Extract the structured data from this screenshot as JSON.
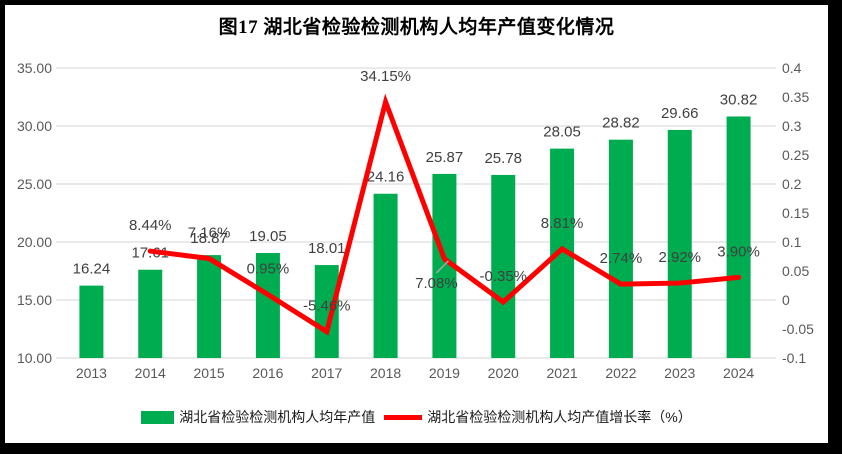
{
  "frame": {
    "border_color": "#000000",
    "background": "#FFFFFF"
  },
  "chart_data": {
    "type": "combo-bar-line",
    "title": "图17 湖北省检验检测机构人均年产值变化情况",
    "categories": [
      "2013",
      "2014",
      "2015",
      "2016",
      "2017",
      "2018",
      "2019",
      "2020",
      "2021",
      "2022",
      "2023",
      "2024"
    ],
    "series": [
      {
        "name": "湖北省检验检测机构人均年产值",
        "type": "bar",
        "axis": "left",
        "color": "#00AC50",
        "values": [
          16.24,
          17.61,
          18.87,
          19.05,
          18.01,
          24.16,
          25.87,
          25.78,
          28.05,
          28.82,
          29.66,
          30.82
        ],
        "labels": [
          "16.24",
          "17.61",
          "18.87",
          "19.05",
          "18.01",
          "24.16",
          "25.87",
          "25.78",
          "28.05",
          "28.82",
          "29.66",
          "30.82"
        ]
      },
      {
        "name": "湖北省检验检测机构人均产值增长率（%）",
        "type": "line",
        "axis": "right",
        "color": "#FF0000",
        "values": [
          null,
          0.0844,
          0.0716,
          0.0095,
          -0.0546,
          0.3415,
          0.0708,
          -0.0035,
          0.0881,
          0.0274,
          0.0292,
          0.039
        ],
        "labels": [
          null,
          "8.44%",
          "7.16%",
          "0.95%",
          "-5.46%",
          "34.15%",
          "7.08%",
          "-0.35%",
          "8.81%",
          "2.74%",
          "2.92%",
          "3.90%"
        ]
      }
    ],
    "axes": {
      "left": {
        "min": 10,
        "max": 35,
        "tick_labels": [
          "35.00",
          "30.00",
          "25.00",
          "20.00",
          "15.00",
          "10.00"
        ]
      },
      "right": {
        "min": -0.1,
        "max": 0.4,
        "tick_labels": [
          "0.4",
          "0.35",
          "0.3",
          "0.25",
          "0.2",
          "0.15",
          "0.1",
          "0.05",
          "0",
          "-0.05",
          "-0.1"
        ]
      }
    },
    "grid": true,
    "grid_color": "#DDDDDD",
    "axis_label_color": "#595959",
    "data_label_color": "#404040",
    "legend_position": "bottom",
    "moved_label": {
      "series": 1,
      "index": 6,
      "dx": -8,
      "dy": 50,
      "leader_color": "#A6A6A6"
    }
  },
  "legend": {
    "items": [
      {
        "label": "湖北省检验检测机构人均年产值",
        "swatch": "bar",
        "color": "#00AC50"
      },
      {
        "label": "湖北省检验检测机构人均产值增长率（%）",
        "swatch": "line",
        "color": "#FF0000"
      }
    ]
  }
}
